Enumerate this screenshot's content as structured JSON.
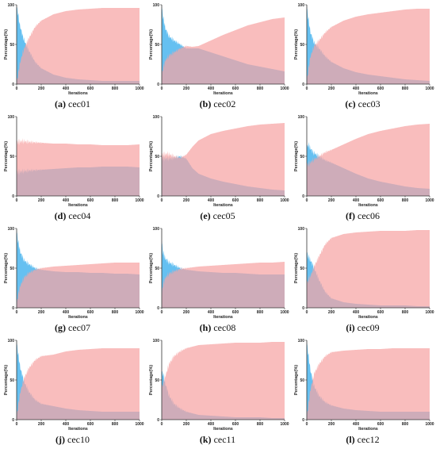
{
  "figure": {
    "xlabel": "Iterations",
    "ylabel": "Percentage(%)",
    "colors": {
      "exploration": "#2aa8ec",
      "exploitation": "#f6a4a4",
      "overlap": "#b07aa6"
    }
  },
  "chart_data": [
    {
      "type": "area",
      "letter": "(a)",
      "name": "cec01",
      "xlim": [
        0,
        1000
      ],
      "ylim": [
        0,
        100
      ],
      "xticks": [
        "0",
        "200",
        "400",
        "600",
        "800",
        "1000"
      ],
      "yticks": [
        "0",
        "50",
        "100"
      ],
      "series": [
        {
          "x": [
            0,
            10,
            25,
            50,
            75,
            100,
            150,
            200,
            300,
            400,
            500,
            600,
            700,
            800,
            1000
          ],
          "values": [
            98,
            90,
            75,
            60,
            50,
            42,
            28,
            20,
            12,
            8,
            6,
            5,
            4,
            4,
            4
          ]
        },
        {
          "x": [
            0,
            10,
            25,
            50,
            75,
            100,
            150,
            200,
            300,
            400,
            500,
            600,
            700,
            800,
            1000
          ],
          "values": [
            2,
            10,
            25,
            40,
            50,
            58,
            72,
            80,
            88,
            92,
            94,
            95,
            96,
            96,
            96
          ]
        }
      ]
    },
    {
      "type": "area",
      "letter": "(b)",
      "name": "cec02",
      "xlim": [
        0,
        1000
      ],
      "ylim": [
        0,
        100
      ],
      "xticks": [
        "0",
        "200",
        "400",
        "600",
        "800",
        "1000"
      ],
      "yticks": [
        "0",
        "50",
        "100"
      ],
      "series": [
        {
          "x": [
            0,
            10,
            30,
            60,
            100,
            150,
            200,
            250,
            300,
            400,
            500,
            600,
            700,
            800,
            900,
            1000
          ],
          "values": [
            98,
            85,
            70,
            60,
            55,
            50,
            45,
            45,
            45,
            40,
            35,
            30,
            25,
            22,
            19,
            16
          ]
        },
        {
          "x": [
            0,
            10,
            30,
            60,
            100,
            150,
            200,
            250,
            300,
            400,
            500,
            600,
            700,
            800,
            900,
            1000
          ],
          "values": [
            10,
            20,
            30,
            36,
            40,
            45,
            48,
            47,
            48,
            55,
            62,
            68,
            74,
            78,
            82,
            84
          ]
        }
      ]
    },
    {
      "type": "area",
      "letter": "(c)",
      "name": "cec03",
      "xlim": [
        0,
        1000
      ],
      "ylim": [
        0,
        100
      ],
      "xticks": [
        "0",
        "200",
        "400",
        "600",
        "800",
        "1000"
      ],
      "yticks": [
        "0",
        "50",
        "100"
      ],
      "series": [
        {
          "x": [
            0,
            10,
            30,
            60,
            100,
            150,
            200,
            300,
            400,
            500,
            600,
            700,
            800,
            900,
            1000
          ],
          "values": [
            98,
            85,
            65,
            52,
            45,
            35,
            28,
            20,
            15,
            12,
            10,
            8,
            6,
            5,
            4
          ]
        },
        {
          "x": [
            0,
            10,
            30,
            60,
            100,
            150,
            200,
            300,
            400,
            500,
            600,
            700,
            800,
            900,
            1000
          ],
          "values": [
            2,
            15,
            35,
            48,
            55,
            65,
            72,
            80,
            85,
            88,
            90,
            92,
            94,
            95,
            95
          ]
        }
      ]
    },
    {
      "type": "area",
      "letter": "(d)",
      "name": "cec04",
      "xlim": [
        0,
        1000
      ],
      "ylim": [
        0,
        100
      ],
      "xticks": [
        "0",
        "200",
        "400",
        "600",
        "800",
        "1000"
      ],
      "yticks": [
        "0",
        "50",
        "100"
      ],
      "series": [
        {
          "x": [
            0,
            50,
            100,
            200,
            300,
            400,
            500,
            600,
            700,
            800,
            900,
            1000
          ],
          "values": [
            30,
            31,
            32,
            33,
            34,
            35,
            36,
            36,
            37,
            37,
            37,
            36
          ]
        },
        {
          "x": [
            0,
            50,
            100,
            200,
            300,
            400,
            500,
            600,
            700,
            800,
            900,
            1000
          ],
          "values": [
            68,
            69,
            68,
            67,
            66,
            66,
            65,
            65,
            64,
            64,
            64,
            65
          ]
        }
      ]
    },
    {
      "type": "area",
      "letter": "(e)",
      "name": "cec05",
      "xlim": [
        0,
        1000
      ],
      "ylim": [
        0,
        100
      ],
      "xticks": [
        "0",
        "200",
        "400",
        "600",
        "800",
        "1000"
      ],
      "yticks": [
        "0",
        "50",
        "100"
      ],
      "series": [
        {
          "x": [
            0,
            50,
            100,
            150,
            200,
            250,
            300,
            400,
            500,
            600,
            700,
            800,
            900,
            1000
          ],
          "values": [
            48,
            47,
            48,
            50,
            47,
            35,
            28,
            22,
            18,
            15,
            12,
            10,
            8,
            7
          ]
        },
        {
          "x": [
            0,
            50,
            100,
            150,
            200,
            250,
            300,
            400,
            500,
            600,
            700,
            800,
            900,
            1000
          ],
          "values": [
            52,
            53,
            50,
            48,
            52,
            62,
            70,
            78,
            82,
            85,
            88,
            90,
            91,
            92
          ]
        }
      ]
    },
    {
      "type": "area",
      "letter": "(f)",
      "name": "cec06",
      "xlim": [
        0,
        1000
      ],
      "ylim": [
        0,
        100
      ],
      "xticks": [
        "0",
        "200",
        "400",
        "600",
        "800",
        "1000"
      ],
      "yticks": [
        "0",
        "50",
        "100"
      ],
      "series": [
        {
          "x": [
            0,
            10,
            50,
            100,
            150,
            200,
            300,
            400,
            500,
            600,
            700,
            800,
            900,
            1000
          ],
          "values": [
            60,
            65,
            55,
            50,
            45,
            42,
            35,
            28,
            22,
            18,
            15,
            12,
            10,
            9
          ]
        },
        {
          "x": [
            0,
            10,
            50,
            100,
            150,
            200,
            300,
            400,
            500,
            600,
            700,
            800,
            900,
            1000
          ],
          "values": [
            40,
            40,
            45,
            50,
            55,
            58,
            65,
            72,
            78,
            82,
            85,
            88,
            90,
            91
          ]
        }
      ]
    },
    {
      "type": "area",
      "letter": "(g)",
      "name": "cec07",
      "xlim": [
        0,
        1000
      ],
      "ylim": [
        0,
        100
      ],
      "xticks": [
        "0",
        "200",
        "400",
        "600",
        "800",
        "1000"
      ],
      "yticks": [
        "0",
        "50",
        "100"
      ],
      "series": [
        {
          "x": [
            0,
            10,
            30,
            60,
            100,
            150,
            200,
            300,
            400,
            500,
            600,
            700,
            800,
            900,
            1000
          ],
          "values": [
            98,
            85,
            70,
            60,
            55,
            50,
            48,
            46,
            45,
            45,
            44,
            44,
            43,
            43,
            42
          ]
        },
        {
          "x": [
            0,
            10,
            30,
            60,
            100,
            150,
            200,
            300,
            400,
            500,
            600,
            700,
            800,
            900,
            1000
          ],
          "values": [
            2,
            15,
            28,
            38,
            44,
            48,
            50,
            52,
            53,
            54,
            55,
            56,
            57,
            57,
            57
          ]
        }
      ]
    },
    {
      "type": "area",
      "letter": "(h)",
      "name": "cec08",
      "xlim": [
        0,
        1000
      ],
      "ylim": [
        0,
        100
      ],
      "xticks": [
        "0",
        "200",
        "400",
        "600",
        "800",
        "1000"
      ],
      "yticks": [
        "0",
        "50",
        "100"
      ],
      "series": [
        {
          "x": [
            0,
            10,
            30,
            60,
            100,
            150,
            200,
            300,
            400,
            500,
            600,
            700,
            800,
            900,
            1000
          ],
          "values": [
            85,
            70,
            62,
            57,
            54,
            50,
            48,
            46,
            45,
            44,
            44,
            43,
            42,
            42,
            42
          ]
        },
        {
          "x": [
            0,
            10,
            30,
            60,
            100,
            150,
            200,
            300,
            400,
            500,
            600,
            700,
            800,
            900,
            1000
          ],
          "values": [
            15,
            30,
            38,
            43,
            46,
            49,
            50,
            52,
            53,
            54,
            55,
            56,
            57,
            57,
            58
          ]
        }
      ]
    },
    {
      "type": "area",
      "letter": "(i)",
      "name": "cec09",
      "xlim": [
        0,
        1000
      ],
      "ylim": [
        0,
        100
      ],
      "xticks": [
        "0",
        "200",
        "400",
        "600",
        "800",
        "1000"
      ],
      "yticks": [
        "0",
        "50",
        "100"
      ],
      "series": [
        {
          "x": [
            0,
            10,
            30,
            60,
            100,
            150,
            200,
            300,
            400,
            500,
            600,
            700,
            800,
            900,
            1000
          ],
          "values": [
            70,
            65,
            60,
            50,
            35,
            20,
            12,
            7,
            5,
            4,
            3,
            3,
            3,
            2,
            2
          ]
        },
        {
          "x": [
            0,
            10,
            30,
            60,
            100,
            150,
            200,
            300,
            400,
            500,
            600,
            700,
            800,
            900,
            1000
          ],
          "values": [
            30,
            35,
            40,
            52,
            65,
            80,
            88,
            93,
            95,
            96,
            97,
            97,
            97,
            98,
            98
          ]
        }
      ]
    },
    {
      "type": "area",
      "letter": "(j)",
      "name": "cec10",
      "xlim": [
        0,
        1000
      ],
      "ylim": [
        0,
        100
      ],
      "xticks": [
        "0",
        "200",
        "400",
        "600",
        "800",
        "1000"
      ],
      "yticks": [
        "0",
        "50",
        "100"
      ],
      "series": [
        {
          "x": [
            0,
            10,
            30,
            60,
            100,
            150,
            200,
            300,
            400,
            500,
            600,
            700,
            800,
            900,
            1000
          ],
          "values": [
            98,
            85,
            65,
            48,
            35,
            25,
            20,
            17,
            14,
            12,
            11,
            10,
            10,
            10,
            10
          ]
        },
        {
          "x": [
            0,
            10,
            30,
            60,
            100,
            150,
            200,
            300,
            400,
            500,
            600,
            700,
            800,
            900,
            1000
          ],
          "values": [
            2,
            15,
            35,
            52,
            65,
            75,
            80,
            82,
            86,
            88,
            89,
            90,
            90,
            90,
            90
          ]
        }
      ]
    },
    {
      "type": "area",
      "letter": "(k)",
      "name": "cec11",
      "xlim": [
        0,
        1000
      ],
      "ylim": [
        0,
        100
      ],
      "xticks": [
        "0",
        "200",
        "400",
        "600",
        "800",
        "1000"
      ],
      "yticks": [
        "0",
        "50",
        "100"
      ],
      "series": [
        {
          "x": [
            0,
            10,
            30,
            60,
            100,
            150,
            200,
            300,
            400,
            500,
            600,
            700,
            800,
            900,
            1000
          ],
          "values": [
            60,
            58,
            45,
            30,
            20,
            14,
            10,
            6,
            5,
            4,
            3,
            3,
            3,
            2,
            2
          ]
        },
        {
          "x": [
            0,
            10,
            30,
            60,
            100,
            150,
            200,
            300,
            400,
            500,
            600,
            700,
            800,
            900,
            1000
          ],
          "values": [
            40,
            45,
            55,
            70,
            80,
            86,
            90,
            94,
            95,
            96,
            97,
            97,
            97,
            98,
            98
          ]
        }
      ]
    },
    {
      "type": "area",
      "letter": "(l)",
      "name": "cec12",
      "xlim": [
        0,
        1000
      ],
      "ylim": [
        0,
        100
      ],
      "xticks": [
        "0",
        "200",
        "400",
        "600",
        "800",
        "1000"
      ],
      "yticks": [
        "0",
        "50",
        "100"
      ],
      "series": [
        {
          "x": [
            0,
            10,
            30,
            60,
            100,
            150,
            200,
            300,
            400,
            500,
            600,
            700,
            800,
            900,
            1000
          ],
          "values": [
            98,
            85,
            62,
            42,
            30,
            22,
            18,
            14,
            12,
            11,
            10,
            10,
            10,
            10,
            10
          ]
        },
        {
          "x": [
            0,
            10,
            30,
            60,
            100,
            150,
            200,
            300,
            400,
            500,
            600,
            700,
            800,
            900,
            1000
          ],
          "values": [
            2,
            15,
            38,
            58,
            70,
            80,
            85,
            87,
            88,
            89,
            89,
            90,
            90,
            90,
            90
          ]
        }
      ]
    }
  ]
}
